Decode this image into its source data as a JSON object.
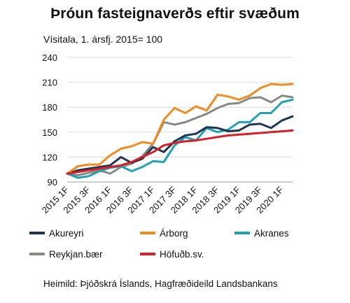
{
  "chart_data": {
    "type": "line",
    "title": "Þróun fasteignaverðs eftir svæðum",
    "subtitle": "Vísitala, 1. ársfj. 2015= 100",
    "source": "Heimild: Þjóðskrá Íslands, Hagfræðideild Landsbankans",
    "ylim": [
      90,
      240
    ],
    "yticks": [
      90,
      120,
      150,
      180,
      210,
      240
    ],
    "x_tick_labels": [
      "2015 1F",
      "2015 3F",
      "2016 1F",
      "2016 3F",
      "2017 1F",
      "2017 3F",
      "2018 1F",
      "2018 3F",
      "2019 1F",
      "2019 3F",
      "2020 1F"
    ],
    "x": [
      "2015 1F",
      "2015 2F",
      "2015 3F",
      "2015 4F",
      "2016 1F",
      "2016 2F",
      "2016 3F",
      "2016 4F",
      "2017 1F",
      "2017 2F",
      "2017 3F",
      "2017 4F",
      "2018 1F",
      "2018 2F",
      "2018 3F",
      "2018 4F",
      "2019 1F",
      "2019 2F",
      "2019 3F",
      "2019 4F",
      "2020 1F",
      "2020 2F"
    ],
    "grid": true,
    "legend_position": "bottom",
    "series": [
      {
        "name": "Akureyri",
        "color": "#1f3552",
        "values": [
          100,
          104,
          106,
          108,
          110,
          120,
          113,
          118,
          132,
          126,
          139,
          146,
          148,
          156,
          155,
          151,
          152,
          159,
          160,
          155,
          164,
          169
        ]
      },
      {
        "name": "Árborg",
        "color": "#f28a22",
        "values": [
          100,
          109,
          111,
          111,
          122,
          130,
          133,
          138,
          136,
          165,
          179,
          173,
          181,
          176,
          195,
          193,
          189,
          194,
          203,
          208,
          207,
          208
        ]
      },
      {
        "name": "Akranes",
        "color": "#23a0b4",
        "values": [
          100,
          95,
          97,
          103,
          107,
          109,
          103,
          108,
          115,
          114,
          134,
          144,
          140,
          155,
          150,
          153,
          162,
          162,
          173,
          173,
          186,
          189
        ]
      },
      {
        "name": "Reykjan.bær",
        "color": "#858a80",
        "values": [
          100,
          98,
          101,
          104,
          100,
          108,
          112,
          121,
          136,
          162,
          159,
          162,
          167,
          172,
          179,
          184,
          185,
          191,
          192,
          186,
          194,
          192
        ]
      },
      {
        "name": "Höfuðb.sv.",
        "color": "#d61f26",
        "values": [
          100,
          102,
          104,
          106,
          108,
          110,
          114,
          120,
          126,
          134,
          137,
          139,
          140,
          142,
          144,
          146,
          147,
          148,
          149,
          150,
          151,
          152
        ]
      }
    ]
  }
}
